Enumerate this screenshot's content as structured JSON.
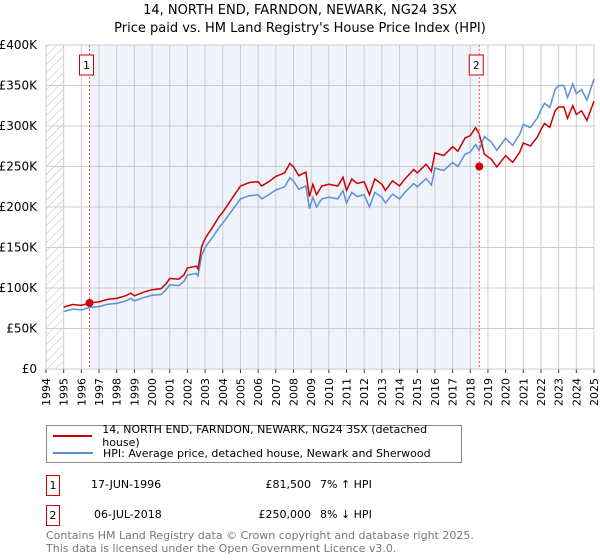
{
  "title": "14, NORTH END, FARNDON, NEWARK, NG24 3SX",
  "subtitle": "Price paid vs. HM Land Registry's House Price Index (HPI)",
  "chart_data": {
    "type": "line",
    "title": "14, NORTH END, FARNDON, NEWARK, NG24 3SX — Price paid vs. HM Land Registry's House Price Index (HPI)",
    "xlim": [
      1994,
      2025
    ],
    "ylim": [
      0,
      400000
    ],
    "y_ticks": [
      0,
      50000,
      100000,
      150000,
      200000,
      250000,
      300000,
      350000,
      400000
    ],
    "y_tick_labels": [
      "£0",
      "£50K",
      "£100K",
      "£150K",
      "£200K",
      "£250K",
      "£300K",
      "£350K",
      "£400K"
    ],
    "x_tick_labels": [
      "1994",
      "1995",
      "1996",
      "1997",
      "1998",
      "1999",
      "2000",
      "2001",
      "2002",
      "2003",
      "2004",
      "2005",
      "2006",
      "2007",
      "2008",
      "2009",
      "2010",
      "2011",
      "2012",
      "2013",
      "2014",
      "2015",
      "2016",
      "2017",
      "2018",
      "2019",
      "2020",
      "2021",
      "2022",
      "2023",
      "2024",
      "2025"
    ],
    "grid": true,
    "colors": {
      "property": "#cc0000",
      "hpi": "#5b8fd6",
      "shade": "#eef3fc"
    },
    "hpi": [
      [
        1995,
        71
      ],
      [
        1995.5,
        74
      ],
      [
        1996,
        73
      ],
      [
        1996.5,
        76
      ],
      [
        1997,
        77
      ],
      [
        1997.5,
        80
      ],
      [
        1998,
        81
      ],
      [
        1998.5,
        84
      ],
      [
        1998.8,
        87
      ],
      [
        1999,
        84
      ],
      [
        1999.5,
        88
      ],
      [
        2000,
        91
      ],
      [
        2000.5,
        92
      ],
      [
        2000.8,
        98
      ],
      [
        2001,
        104
      ],
      [
        2001.5,
        103
      ],
      [
        2001.8,
        108
      ],
      [
        2002,
        116
      ],
      [
        2002.5,
        118
      ],
      [
        2002.6,
        115
      ],
      [
        2002.8,
        140
      ],
      [
        2003,
        150
      ],
      [
        2003.4,
        162
      ],
      [
        2003.8,
        175
      ],
      [
        2004,
        180
      ],
      [
        2004.5,
        195
      ],
      [
        2005,
        210
      ],
      [
        2005.5,
        214
      ],
      [
        2006,
        215
      ],
      [
        2006.2,
        210
      ],
      [
        2006.6,
        215
      ],
      [
        2007,
        221
      ],
      [
        2007.5,
        225
      ],
      [
        2007.8,
        236
      ],
      [
        2008,
        232
      ],
      [
        2008.3,
        222
      ],
      [
        2008.7,
        226
      ],
      [
        2008.9,
        198
      ],
      [
        2009.1,
        212
      ],
      [
        2009.3,
        200
      ],
      [
        2009.6,
        210
      ],
      [
        2010,
        212
      ],
      [
        2010.5,
        210
      ],
      [
        2010.8,
        220
      ],
      [
        2011,
        205
      ],
      [
        2011.3,
        218
      ],
      [
        2011.6,
        213
      ],
      [
        2012,
        215
      ],
      [
        2012.3,
        200
      ],
      [
        2012.6,
        218
      ],
      [
        2013,
        212
      ],
      [
        2013.2,
        205
      ],
      [
        2013.6,
        216
      ],
      [
        2014,
        210
      ],
      [
        2014.3,
        218
      ],
      [
        2014.8,
        229
      ],
      [
        2015,
        225
      ],
      [
        2015.5,
        235
      ],
      [
        2015.8,
        227
      ],
      [
        2016,
        248
      ],
      [
        2016.5,
        245
      ],
      [
        2017,
        255
      ],
      [
        2017.3,
        250
      ],
      [
        2017.7,
        265
      ],
      [
        2018,
        268
      ],
      [
        2018.3,
        277
      ],
      [
        2018.5,
        270
      ],
      [
        2018.8,
        287
      ],
      [
        2019.2,
        280
      ],
      [
        2019.5,
        270
      ],
      [
        2020,
        285
      ],
      [
        2020.4,
        276
      ],
      [
        2020.8,
        290
      ],
      [
        2021,
        302
      ],
      [
        2021.4,
        298
      ],
      [
        2021.8,
        310
      ],
      [
        2022,
        320
      ],
      [
        2022.2,
        328
      ],
      [
        2022.5,
        323
      ],
      [
        2022.8,
        345
      ],
      [
        2023,
        350
      ],
      [
        2023.3,
        350
      ],
      [
        2023.5,
        335
      ],
      [
        2023.8,
        352
      ],
      [
        2024,
        340
      ],
      [
        2024.3,
        345
      ],
      [
        2024.6,
        332
      ],
      [
        2025,
        358
      ]
    ],
    "hpi_units": "thousand GBP",
    "sales": [
      {
        "label": "1",
        "x": 1996.46,
        "price": 81500
      },
      {
        "label": "2",
        "x": 2018.51,
        "price": 250000
      }
    ],
    "legend_position": "below"
  },
  "legend": {
    "property": "14, NORTH END, FARNDON, NEWARK, NG24 3SX (detached house)",
    "hpi": "HPI: Average price, detached house, Newark and Sherwood"
  },
  "transactions": [
    {
      "num": "1",
      "date": "17-JUN-1996",
      "price": "£81,500",
      "hpi": "7% ↑ HPI"
    },
    {
      "num": "2",
      "date": "06-JUL-2018",
      "price": "£250,000",
      "hpi": "8% ↓ HPI"
    }
  ],
  "footer": [
    "Contains HM Land Registry data © Crown copyright and database right 2025.",
    "This data is licensed under the Open Government Licence v3.0."
  ]
}
